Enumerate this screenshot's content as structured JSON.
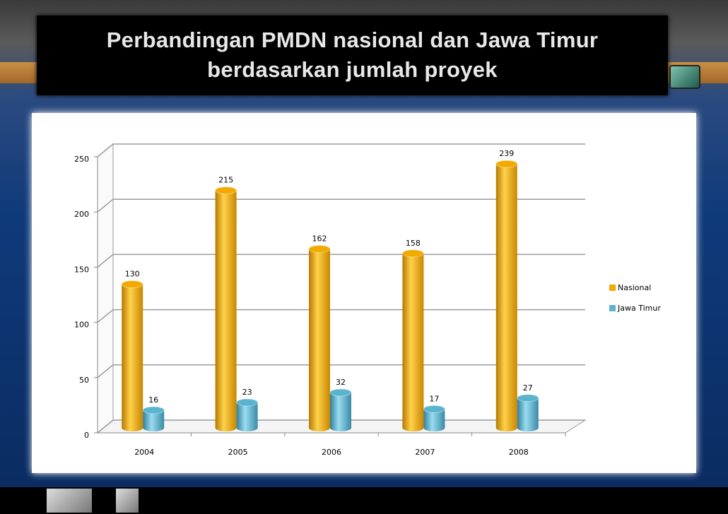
{
  "chart_data": {
    "type": "bar",
    "title": "Perbandingan PMDN nasional dan Jawa Timur berdasarkan jumlah proyek",
    "categories": [
      "2004",
      "2005",
      "2006",
      "2007",
      "2008"
    ],
    "series": [
      {
        "name": "Nasional",
        "color": "#f2a900",
        "values": [
          130,
          215,
          162,
          158,
          239
        ]
      },
      {
        "name": "Jawa Timur",
        "color": "#5ab4cf",
        "values": [
          16,
          23,
          32,
          17,
          27
        ]
      }
    ],
    "ylim": [
      0,
      250
    ],
    "yticks": [
      0,
      50,
      100,
      150,
      200,
      250
    ],
    "grid": true,
    "legend": "right"
  }
}
